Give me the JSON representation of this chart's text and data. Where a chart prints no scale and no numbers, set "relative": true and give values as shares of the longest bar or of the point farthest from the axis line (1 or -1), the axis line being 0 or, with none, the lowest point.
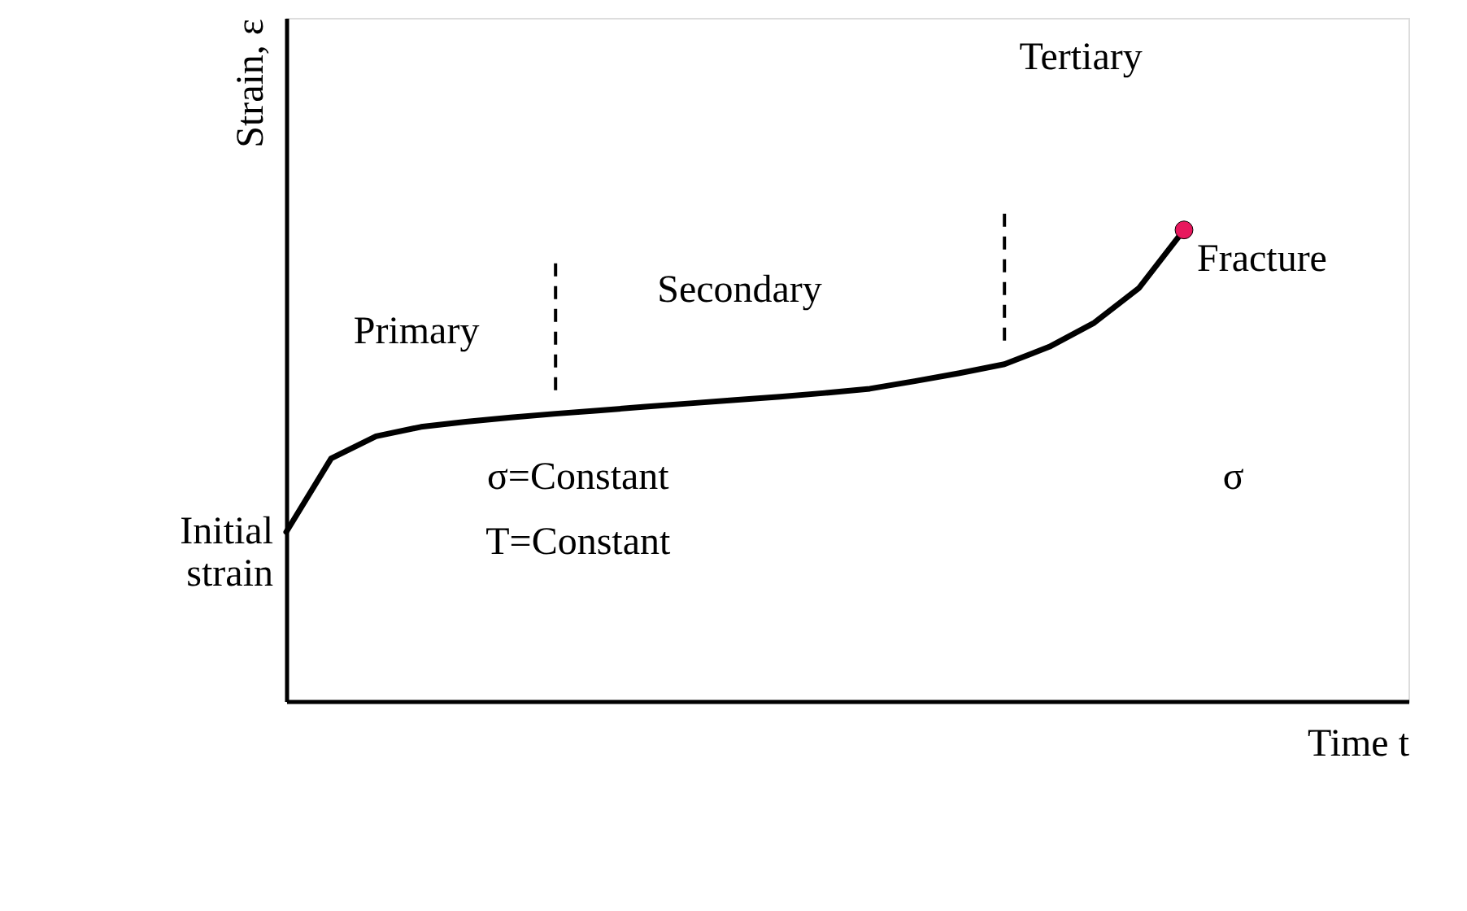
{
  "chart_data": {
    "type": "line",
    "relative": true,
    "xlabel": "Time t",
    "ylabel": "Strain, ε",
    "tick_labels": false,
    "grid": false,
    "line_style": "solid",
    "categories": [
      null,
      null,
      null,
      null,
      null,
      null,
      null,
      null,
      null,
      null,
      null,
      null,
      null,
      null,
      null,
      null,
      null,
      null,
      null,
      null,
      null
    ],
    "series": [
      {
        "color": "#000000",
        "values": [
          0.359,
          0.515,
          0.562,
          0.582,
          0.593,
          0.602,
          0.61,
          0.617,
          0.625,
          0.632,
          0.639,
          0.646,
          0.654,
          0.663,
          0.679,
          0.696,
          0.715,
          0.752,
          0.803,
          0.877,
          1.0
        ]
      }
    ],
    "annotations": [
      "Primary",
      "Secondary",
      "Tertiary",
      "Fracture",
      "Initial strain",
      "σ=Constant",
      "T=Constant",
      "σ"
    ]
  }
}
